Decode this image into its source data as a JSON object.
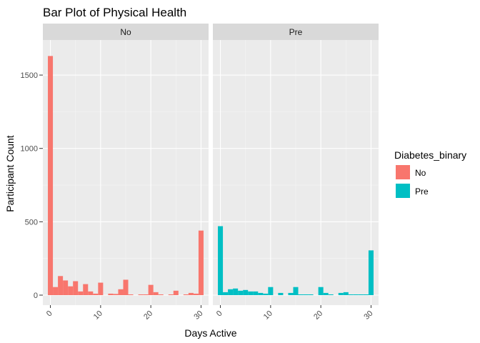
{
  "chart_data": {
    "type": "bar",
    "title": "Bar Plot of Physical Health",
    "xlabel": "Days Active",
    "ylabel": "Participant Count",
    "xlim": [
      -1.5,
      31.5
    ],
    "ylim": [
      0,
      1700
    ],
    "x_ticks": [
      0,
      10,
      20,
      30
    ],
    "y_ticks": [
      0,
      500,
      1000,
      1500
    ],
    "grid": true,
    "legend_position": "right",
    "legend_title": "Diabetes_binary",
    "x": [
      0,
      1,
      2,
      3,
      4,
      5,
      6,
      7,
      8,
      9,
      10,
      11,
      12,
      13,
      14,
      15,
      16,
      17,
      18,
      19,
      20,
      21,
      22,
      23,
      24,
      25,
      26,
      27,
      28,
      29,
      30
    ],
    "facets": [
      {
        "label": "No",
        "color": "#F8766D",
        "values": [
          1630,
          55,
          130,
          100,
          60,
          95,
          25,
          75,
          25,
          10,
          85,
          0,
          10,
          8,
          40,
          105,
          5,
          0,
          5,
          5,
          70,
          20,
          5,
          0,
          5,
          30,
          0,
          5,
          15,
          10,
          440
        ]
      },
      {
        "label": "Pre",
        "color": "#00BFC4",
        "values": [
          470,
          20,
          40,
          45,
          30,
          35,
          25,
          25,
          15,
          10,
          55,
          0,
          15,
          0,
          15,
          55,
          5,
          5,
          5,
          0,
          55,
          15,
          5,
          0,
          15,
          20,
          5,
          5,
          5,
          5,
          305
        ]
      }
    ],
    "legend": [
      {
        "label": "No",
        "color": "#F8766D"
      },
      {
        "label": "Pre",
        "color": "#00BFC4"
      }
    ]
  }
}
